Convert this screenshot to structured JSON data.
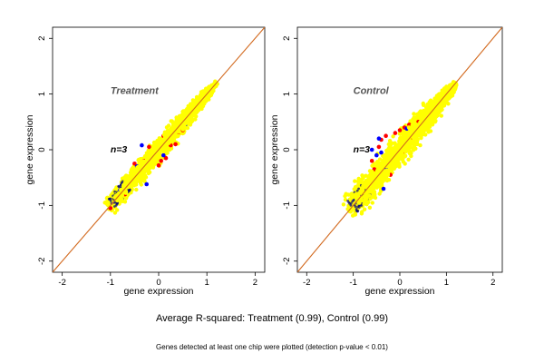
{
  "caption_main": "Average R-squared: Treatment (0.99), Control (0.99)",
  "caption_sub": "Genes detected at least one chip were plotted (detection p-value < 0.01)",
  "colors": {
    "bulk": "#ffff00",
    "outlier_red": "#ff0000",
    "outlier_blue": "#0000ff",
    "edge": "#000080",
    "diagonal": "#d2691e"
  },
  "chart_data": [
    {
      "type": "scatter",
      "panel": "left",
      "title": "Treatment",
      "annotation": "n=3",
      "xlabel": "gene expression",
      "ylabel": "gene expression",
      "xlim": [
        -2.2,
        2.2
      ],
      "ylim": [
        -2.2,
        2.2
      ],
      "xticks": [
        -2,
        -1,
        0,
        1,
        2
      ],
      "yticks": [
        -2,
        -1,
        0,
        1,
        2
      ],
      "reference_line": "y = x",
      "bulk_range": [
        -1.05,
        1.2
      ],
      "bulk_spread": 0.05,
      "outliers_red": [
        [
          0.05,
          -0.2
        ],
        [
          -0.15,
          -0.05
        ],
        [
          0.25,
          0.08
        ],
        [
          0.4,
          0.3
        ],
        [
          0.0,
          -0.28
        ],
        [
          -0.3,
          -0.2
        ],
        [
          0.15,
          -0.15
        ],
        [
          -0.5,
          -0.25
        ],
        [
          0.5,
          0.35
        ],
        [
          0.1,
          0.25
        ],
        [
          -0.7,
          -0.8
        ],
        [
          -1.0,
          -1.05
        ],
        [
          0.35,
          0.1
        ],
        [
          -0.2,
          0.05
        ]
      ],
      "outliers_blue": [
        [
          -0.35,
          0.08
        ],
        [
          0.3,
          0.38
        ],
        [
          -0.25,
          -0.62
        ],
        [
          0.1,
          -0.1
        ],
        [
          -0.8,
          -0.72
        ],
        [
          0.55,
          0.45
        ],
        [
          -0.45,
          -0.3
        ]
      ]
    },
    {
      "type": "scatter",
      "panel": "right",
      "title": "Control",
      "annotation": "n=3",
      "xlabel": "gene expression",
      "ylabel": "gene expression",
      "xlim": [
        -2.2,
        2.2
      ],
      "ylim": [
        -2.2,
        2.2
      ],
      "xticks": [
        -2,
        -1,
        0,
        1,
        2
      ],
      "yticks": [
        -2,
        -1,
        0,
        1,
        2
      ],
      "reference_line": "y = x",
      "bulk_range": [
        -1.1,
        1.2
      ],
      "bulk_spread": 0.07,
      "outliers_red": [
        [
          -0.45,
          0.05
        ],
        [
          -0.3,
          0.25
        ],
        [
          -0.1,
          0.3
        ],
        [
          0.0,
          0.35
        ],
        [
          0.1,
          0.4
        ],
        [
          0.2,
          0.45
        ],
        [
          0.25,
          0.2
        ],
        [
          -0.55,
          -0.35
        ],
        [
          -0.2,
          -0.45
        ],
        [
          0.4,
          0.5
        ],
        [
          0.6,
          0.55
        ],
        [
          -0.6,
          -0.2
        ],
        [
          0.05,
          -0.05
        ],
        [
          -0.4,
          0.18
        ]
      ],
      "outliers_blue": [
        [
          -0.45,
          0.2
        ],
        [
          -0.5,
          -0.1
        ],
        [
          -0.4,
          -0.05
        ],
        [
          -0.6,
          0.0
        ],
        [
          -0.3,
          -0.35
        ],
        [
          0.15,
          0.38
        ],
        [
          -0.35,
          -0.7
        ]
      ]
    }
  ]
}
